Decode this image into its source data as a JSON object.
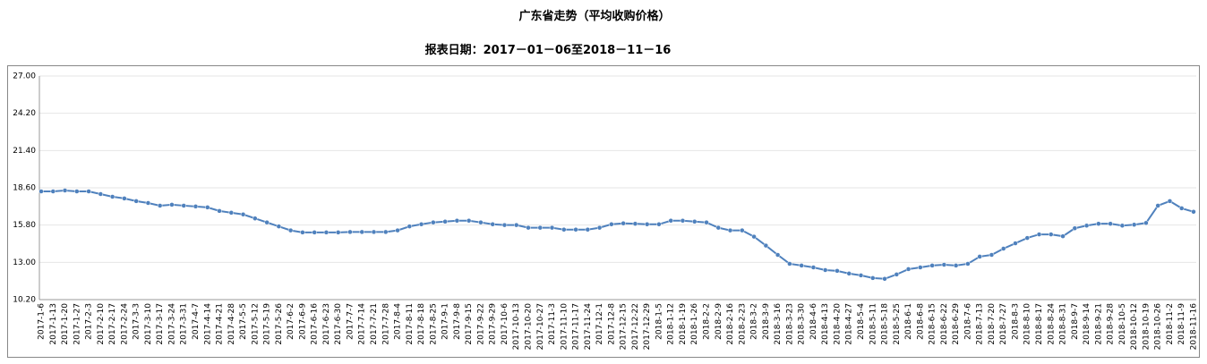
{
  "chart_data": {
    "type": "line",
    "title": "广东省走势（平均收购价格）",
    "subtitle": "报表日期：2017－01－06至2018－11－16",
    "color": "#4f81bd",
    "grid": true,
    "ylim": [
      10.2,
      27
    ],
    "yticks": [
      {
        "value": 10.2,
        "label": "10.20"
      },
      {
        "value": 13,
        "label": "13.00"
      },
      {
        "value": 15.8,
        "label": "15.80"
      },
      {
        "value": 18.6,
        "label": "18.60"
      },
      {
        "value": 21.4,
        "label": "21.40"
      },
      {
        "value": 24.2,
        "label": "24.20"
      },
      {
        "value": 27,
        "label": "27.00"
      }
    ],
    "categories": [
      "2017-1-6",
      "2017-1-13",
      "2017-1-20",
      "2017-1-27",
      "2017-2-3",
      "2017-2-10",
      "2017-2-17",
      "2017-2-24",
      "2017-3-3",
      "2017-3-10",
      "2017-3-17",
      "2017-3-24",
      "2017-3-31",
      "2017-4-7",
      "2017-4-14",
      "2017-4-21",
      "2017-4-28",
      "2017-5-5",
      "2017-5-12",
      "2017-5-19",
      "2017-5-26",
      "2017-6-2",
      "2017-6-9",
      "2017-6-16",
      "2017-6-23",
      "2017-6-30",
      "2017-7-7",
      "2017-7-14",
      "2017-7-21",
      "2017-7-28",
      "2017-8-4",
      "2017-8-11",
      "2017-8-18",
      "2017-8-25",
      "2017-9-1",
      "2017-9-8",
      "2017-9-15",
      "2017-9-22",
      "2017-9-29",
      "2017-10-6",
      "2017-10-13",
      "2017-10-20",
      "2017-10-27",
      "2017-11-3",
      "2017-11-10",
      "2017-11-17",
      "2017-11-24",
      "2017-12-1",
      "2017-12-8",
      "2017-12-15",
      "2017-12-22",
      "2017-12-29",
      "2018-1-5",
      "2018-1-12",
      "2018-1-19",
      "2018-1-26",
      "2018-2-2",
      "2018-2-9",
      "2018-2-16",
      "2018-2-23",
      "2018-3-2",
      "2018-3-9",
      "2018-3-16",
      "2018-3-23",
      "2018-3-30",
      "2018-4-6",
      "2018-4-13",
      "2018-4-20",
      "2018-4-27",
      "2018-5-4",
      "2018-5-11",
      "2018-5-18",
      "2018-5-25",
      "2018-6-1",
      "2018-6-8",
      "2018-6-15",
      "2018-6-22",
      "2018-6-29",
      "2018-7-6",
      "2018-7-13",
      "2018-7-20",
      "2018-7-27",
      "2018-8-3",
      "2018-8-10",
      "2018-8-17",
      "2018-8-24",
      "2018-8-31",
      "2018-9-7",
      "2018-9-14",
      "2018-9-21",
      "2018-9-28",
      "2018-10-5",
      "2018-10-12",
      "2018-10-19",
      "2018-10-26",
      "2018-11-2",
      "2018-11-9",
      "2018-11-16"
    ],
    "values": [
      18.33,
      18.33,
      18.4,
      18.33,
      18.33,
      18.13,
      17.93,
      17.8,
      17.6,
      17.46,
      17.26,
      17.33,
      17.26,
      17.2,
      17.13,
      16.86,
      16.73,
      16.6,
      16.3,
      16.0,
      15.7,
      15.4,
      15.25,
      15.25,
      15.25,
      15.25,
      15.28,
      15.28,
      15.28,
      15.28,
      15.4,
      15.7,
      15.86,
      16.0,
      16.06,
      16.13,
      16.13,
      16.0,
      15.86,
      15.8,
      15.8,
      15.6,
      15.6,
      15.6,
      15.46,
      15.46,
      15.46,
      15.6,
      15.86,
      15.93,
      15.9,
      15.86,
      15.86,
      16.13,
      16.13,
      16.06,
      16.0,
      15.6,
      15.4,
      15.4,
      14.93,
      14.26,
      13.56,
      12.89,
      12.76,
      12.62,
      12.42,
      12.36,
      12.16,
      12.02,
      11.82,
      11.76,
      12.09,
      12.49,
      12.62,
      12.76,
      12.82,
      12.76,
      12.89,
      13.43,
      13.56,
      14.03,
      14.43,
      14.83,
      15.1,
      15.1,
      14.96,
      15.56,
      15.76,
      15.9,
      15.9,
      15.76,
      15.83,
      15.96,
      17.26,
      17.6,
      17.06,
      16.8
    ]
  }
}
